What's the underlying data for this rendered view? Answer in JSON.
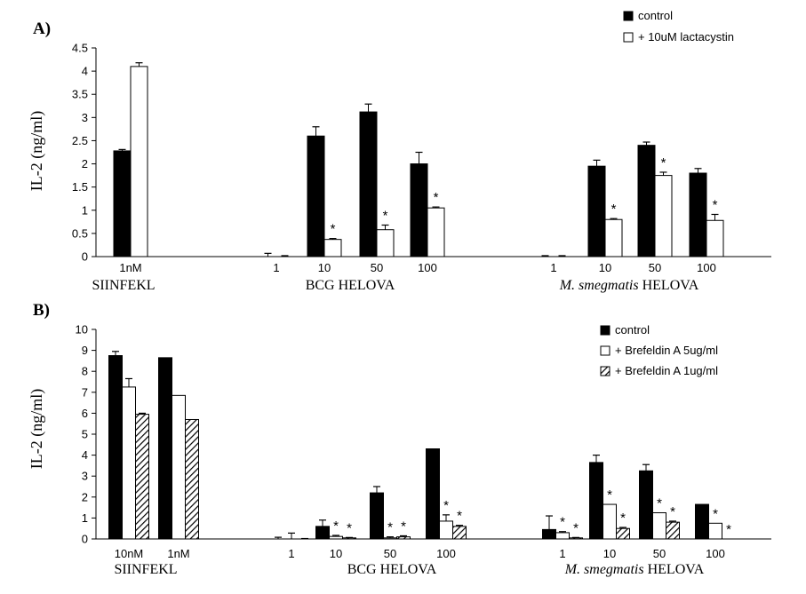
{
  "chart_data": [
    {
      "type": "bar",
      "title": "A)",
      "ylabel": "IL-2 (ng/ml)",
      "ylim": [
        0,
        4.5
      ],
      "yticks": [
        "0",
        "0.5",
        "1",
        "1.5",
        "2",
        "2.5",
        "3",
        "3.5",
        "4",
        "4.5"
      ],
      "groups": [
        {
          "name": "SIINFEKL",
          "categories": [
            "1nM"
          ]
        },
        {
          "name": "BCG HELOVA",
          "categories": [
            "1",
            "10",
            "50",
            "100"
          ]
        },
        {
          "name_italic": "M. smegmatis",
          "name_rest": " HELOVA",
          "categories": [
            "1",
            "10",
            "50",
            "100"
          ]
        }
      ],
      "series": [
        {
          "name": "control",
          "style": "black",
          "values": [
            2.28,
            0.0,
            2.6,
            3.12,
            2.0,
            0.0,
            1.95,
            2.4,
            1.8
          ],
          "errors": [
            0.03,
            0.07,
            0.2,
            0.17,
            0.25,
            0.02,
            0.13,
            0.07,
            0.1
          ]
        },
        {
          "name": "+ 10uM lactacystin",
          "style": "white",
          "values": [
            4.1,
            0.0,
            0.37,
            0.58,
            1.05,
            0.0,
            0.8,
            1.75,
            0.78
          ],
          "errors": [
            0.08,
            0.02,
            0.02,
            0.1,
            0.02,
            0.02,
            0.02,
            0.07,
            0.13
          ]
        }
      ],
      "annotations": [
        {
          "text": "*",
          "series": 1,
          "category": 2
        },
        {
          "text": "*",
          "series": 1,
          "category": 3
        },
        {
          "text": "*",
          "series": 1,
          "category": 4
        },
        {
          "text": "*",
          "series": 1,
          "category": 6
        },
        {
          "text": "*",
          "series": 1,
          "category": 7
        },
        {
          "text": "*",
          "series": 1,
          "category": 8
        }
      ],
      "legend": "top-right"
    },
    {
      "type": "bar",
      "title": "B)",
      "ylabel": "IL-2 (ng/ml)",
      "ylim": [
        0,
        10
      ],
      "yticks": [
        "0",
        "1",
        "2",
        "3",
        "4",
        "5",
        "6",
        "7",
        "8",
        "9",
        "10"
      ],
      "groups": [
        {
          "name": "SIINFEKL",
          "categories": [
            "10nM",
            "1nM"
          ]
        },
        {
          "name": "BCG HELOVA",
          "categories": [
            "1",
            "10",
            "50",
            "100"
          ]
        },
        {
          "name_italic": "M. smegmatis",
          "name_rest": " HELOVA",
          "categories": [
            "1",
            "10",
            "50",
            "100"
          ]
        }
      ],
      "series": [
        {
          "name": "control",
          "style": "black",
          "values": [
            8.75,
            8.65,
            0.0,
            0.6,
            2.2,
            4.3,
            0.45,
            3.65,
            3.25,
            1.65
          ],
          "errors": [
            0.2,
            0.0,
            0.08,
            0.3,
            0.3,
            0.0,
            0.65,
            0.35,
            0.3,
            0.0
          ]
        },
        {
          "name": "+ Brefeldin A 5ug/ml",
          "style": "white",
          "values": [
            7.25,
            6.85,
            0.0,
            0.12,
            0.05,
            0.85,
            0.3,
            1.65,
            1.25,
            0.75
          ],
          "errors": [
            0.4,
            0.0,
            0.28,
            0.05,
            0.05,
            0.3,
            0.05,
            0.0,
            0.0,
            0.0
          ]
        },
        {
          "name": "+ Brefeldin A 1ug/ml",
          "style": "hatch",
          "values": [
            5.95,
            5.7,
            0.0,
            0.05,
            0.1,
            0.6,
            0.05,
            0.5,
            0.8,
            0.0
          ],
          "errors": [
            0.05,
            0.0,
            0.02,
            0.02,
            0.05,
            0.05,
            0.02,
            0.05,
            0.05,
            0.0
          ]
        }
      ],
      "annotations": [
        {
          "text": "*",
          "series": 1,
          "category": 3
        },
        {
          "text": "*",
          "series": 2,
          "category": 3
        },
        {
          "text": "*",
          "series": 1,
          "category": 4
        },
        {
          "text": "*",
          "series": 2,
          "category": 4
        },
        {
          "text": "*",
          "series": 1,
          "category": 5
        },
        {
          "text": "*",
          "series": 2,
          "category": 5
        },
        {
          "text": "*",
          "series": 1,
          "category": 6
        },
        {
          "text": "*",
          "series": 2,
          "category": 6
        },
        {
          "text": "*",
          "series": 1,
          "category": 7
        },
        {
          "text": "*",
          "series": 2,
          "category": 7
        },
        {
          "text": "*",
          "series": 1,
          "category": 8
        },
        {
          "text": "*",
          "series": 2,
          "category": 8
        },
        {
          "text": "*",
          "series": 1,
          "category": 9
        },
        {
          "text": "*",
          "series": 2,
          "category": 9
        }
      ],
      "legend": "top-right"
    }
  ]
}
